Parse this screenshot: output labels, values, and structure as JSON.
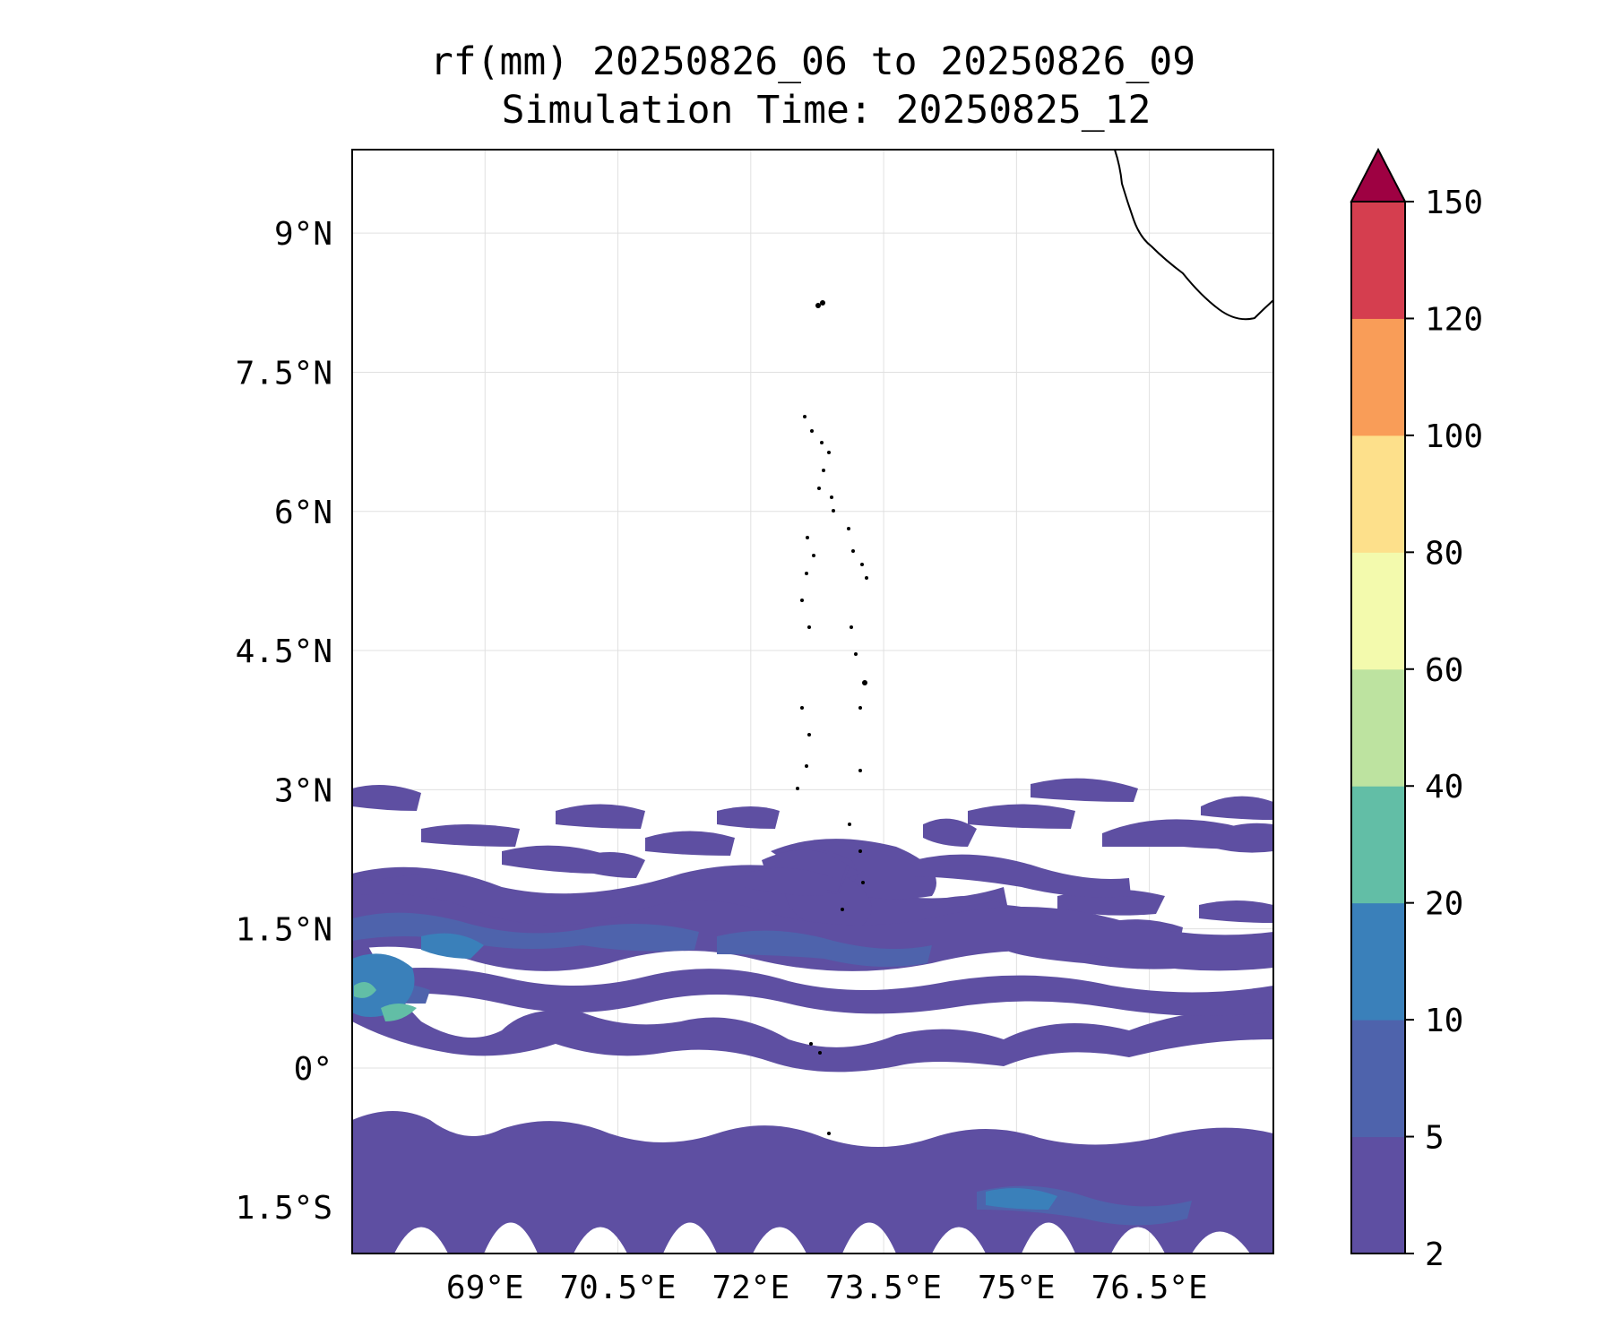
{
  "title": {
    "line1": "rf(mm) 20250826_06 to 20250826_09",
    "line2": "Simulation Time: 20250825_12"
  },
  "map": {
    "lon_range": [
      67.5,
      77.9
    ],
    "lat_range": [
      -2.0,
      9.9
    ],
    "lon_ticks": [
      {
        "value": 69.0,
        "label": "69°E"
      },
      {
        "value": 70.5,
        "label": "70.5°E"
      },
      {
        "value": 72.0,
        "label": "72°E"
      },
      {
        "value": 73.5,
        "label": "73.5°E"
      },
      {
        "value": 75.0,
        "label": "75°E"
      },
      {
        "value": 76.5,
        "label": "76.5°E"
      }
    ],
    "lat_ticks": [
      {
        "value": 9.0,
        "label": "9°N"
      },
      {
        "value": 7.5,
        "label": "7.5°N"
      },
      {
        "value": 6.0,
        "label": "6°N"
      },
      {
        "value": 4.5,
        "label": "4.5°N"
      },
      {
        "value": 3.0,
        "label": "3°N"
      },
      {
        "value": 1.5,
        "label": "1.5°N"
      },
      {
        "value": 0.0,
        "label": "0°"
      },
      {
        "value": -1.5,
        "label": "1.5°S"
      }
    ],
    "gridlines": true,
    "coastline_color": "#000000",
    "grid_color": "#e0e0e0"
  },
  "colorbar": {
    "extend": "max",
    "extend_color": "#9e0142",
    "levels": [
      {
        "from": 2,
        "to": 5,
        "color": "#5e4fa2"
      },
      {
        "from": 5,
        "to": 10,
        "color": "#4e63ac"
      },
      {
        "from": 10,
        "to": 20,
        "color": "#3a80ba"
      },
      {
        "from": 20,
        "to": 40,
        "color": "#62bea6"
      },
      {
        "from": 40,
        "to": 60,
        "color": "#bde3a0"
      },
      {
        "from": 60,
        "to": 80,
        "color": "#f3faad"
      },
      {
        "from": 80,
        "to": 100,
        "color": "#fde08b"
      },
      {
        "from": 100,
        "to": 120,
        "color": "#f99d58"
      },
      {
        "from": 120,
        "to": 150,
        "color": "#d53e4f"
      }
    ],
    "tick_labels": [
      "2",
      "5",
      "10",
      "20",
      "40",
      "60",
      "80",
      "100",
      "120",
      "150"
    ]
  }
}
